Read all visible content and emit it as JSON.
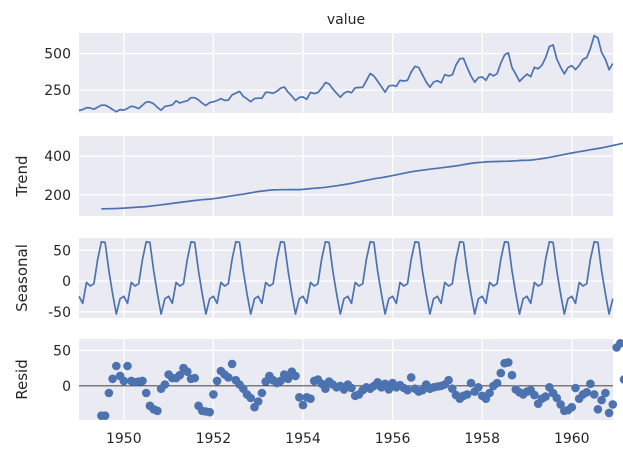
{
  "figure": {
    "title": "value"
  },
  "chart_data": [
    {
      "type": "line",
      "panel": "observed",
      "title": "value",
      "ylabel": "",
      "x_start": 1949.0,
      "x_step": 0.08333,
      "xlim": [
        1949.0,
        1960.92
      ],
      "ylim": [
        95,
        640
      ],
      "yticks": [
        250,
        500
      ],
      "color": "#4c72b0",
      "values": [
        112,
        118,
        132,
        129,
        121,
        135,
        148,
        148,
        136,
        119,
        104,
        118,
        115,
        126,
        141,
        135,
        125,
        149,
        170,
        170,
        158,
        133,
        114,
        140,
        145,
        150,
        178,
        163,
        172,
        178,
        199,
        199,
        184,
        162,
        146,
        166,
        171,
        180,
        193,
        181,
        183,
        218,
        230,
        242,
        209,
        191,
        172,
        194,
        196,
        196,
        236,
        235,
        229,
        243,
        264,
        272,
        237,
        211,
        180,
        201,
        204,
        188,
        235,
        227,
        234,
        264,
        302,
        293,
        259,
        229,
        203,
        229,
        242,
        233,
        267,
        269,
        270,
        315,
        364,
        347,
        312,
        274,
        237,
        278,
        284,
        277,
        317,
        313,
        318,
        374,
        413,
        405,
        355,
        306,
        271,
        306,
        315,
        301,
        356,
        348,
        355,
        422,
        465,
        467,
        404,
        347,
        305,
        336,
        340,
        318,
        362,
        348,
        363,
        435,
        491,
        505,
        404,
        359,
        310,
        337,
        360,
        342,
        406,
        396,
        420,
        472,
        548,
        559,
        463,
        407,
        362,
        405,
        417,
        391,
        419,
        461,
        472,
        535,
        622,
        606,
        508,
        461,
        390,
        432
      ]
    },
    {
      "type": "line",
      "panel": "trend",
      "ylabel": "Trend",
      "x_start": 1949.5,
      "x_step": 0.08333,
      "xlim": [
        1949.0,
        1960.92
      ],
      "ylim": [
        90,
        505
      ],
      "yticks": [
        200,
        400
      ],
      "color": "#4c72b0",
      "values": [
        126.8,
        127.3,
        127.9,
        128.6,
        129.0,
        129.8,
        131.0,
        132.2,
        133.7,
        134.9,
        136.4,
        137.4,
        138.8,
        140.9,
        143.2,
        145.7,
        148.0,
        150.3,
        152.6,
        155.2,
        158.0,
        160.7,
        163.0,
        165.3,
        167.8,
        170.2,
        172.6,
        174.5,
        176.1,
        177.8,
        180.0,
        182.4,
        185.4,
        188.7,
        192.0,
        194.9,
        197.9,
        200.7,
        203.3,
        206.5,
        210.1,
        213.7,
        216.9,
        219.4,
        221.9,
        224.0,
        225.4,
        226.1,
        226.4,
        226.5,
        226.7,
        226.8,
        226.8,
        227.0,
        228.2,
        230.0,
        232.3,
        233.9,
        235.2,
        236.6,
        238.7,
        241.3,
        244.0,
        246.8,
        249.7,
        252.7,
        255.9,
        259.5,
        263.5,
        267.7,
        271.4,
        275.3,
        279.0,
        282.8,
        286.0,
        288.8,
        292.3,
        296.1,
        299.8,
        303.6,
        307.5,
        311.5,
        315.5,
        319.1,
        322.3,
        325.0,
        327.6,
        330.3,
        332.8,
        335.2,
        337.6,
        340.2,
        342.6,
        344.8,
        347.2,
        349.8,
        352.9,
        356.6,
        360.0,
        362.8,
        365.3,
        367.3,
        368.8,
        370.5,
        371.9,
        372.4,
        372.9,
        373.4,
        373.8,
        374.4,
        375.3,
        376.6,
        377.8,
        378.4,
        379.1,
        380.2,
        382.0,
        384.8,
        387.7,
        390.6,
        394.0,
        397.8,
        401.6,
        405.4,
        409.3,
        413.2,
        417.0,
        420.3,
        423.4,
        426.8,
        430.4,
        433.8,
        437.2,
        440.3,
        443.5,
        447.5,
        451.6,
        455.8,
        460.1,
        464.6,
        468.8,
        472.6,
        475.9
      ]
    },
    {
      "type": "line",
      "panel": "seasonal",
      "ylabel": "Seasonal",
      "x_start": 1949.0,
      "x_step": 0.08333,
      "xlim": [
        1949.0,
        1960.92
      ],
      "ylim": [
        -60,
        70
      ],
      "yticks": [
        -50,
        0,
        50
      ],
      "color": "#4c72b0",
      "values": [
        -24.7,
        -36.2,
        -2.2,
        -8.0,
        -4.5,
        35.4,
        63.8,
        62.8,
        16.5,
        -20.6,
        -53.6,
        -28.6,
        -24.7,
        -36.2,
        -2.2,
        -8.0,
        -4.5,
        35.4,
        63.8,
        62.8,
        16.5,
        -20.6,
        -53.6,
        -28.6,
        -24.7,
        -36.2,
        -2.2,
        -8.0,
        -4.5,
        35.4,
        63.8,
        62.8,
        16.5,
        -20.6,
        -53.6,
        -28.6,
        -24.7,
        -36.2,
        -2.2,
        -8.0,
        -4.5,
        35.4,
        63.8,
        62.8,
        16.5,
        -20.6,
        -53.6,
        -28.6,
        -24.7,
        -36.2,
        -2.2,
        -8.0,
        -4.5,
        35.4,
        63.8,
        62.8,
        16.5,
        -20.6,
        -53.6,
        -28.6,
        -24.7,
        -36.2,
        -2.2,
        -8.0,
        -4.5,
        35.4,
        63.8,
        62.8,
        16.5,
        -20.6,
        -53.6,
        -28.6,
        -24.7,
        -36.2,
        -2.2,
        -8.0,
        -4.5,
        35.4,
        63.8,
        62.8,
        16.5,
        -20.6,
        -53.6,
        -28.6,
        -24.7,
        -36.2,
        -2.2,
        -8.0,
        -4.5,
        35.4,
        63.8,
        62.8,
        16.5,
        -20.6,
        -53.6,
        -28.6,
        -24.7,
        -36.2,
        -2.2,
        -8.0,
        -4.5,
        35.4,
        63.8,
        62.8,
        16.5,
        -20.6,
        -53.6,
        -28.6,
        -24.7,
        -36.2,
        -2.2,
        -8.0,
        -4.5,
        35.4,
        63.8,
        62.8,
        16.5,
        -20.6,
        -53.6,
        -28.6,
        -24.7,
        -36.2,
        -2.2,
        -8.0,
        -4.5,
        35.4,
        63.8,
        62.8,
        16.5,
        -20.6,
        -53.6,
        -28.6,
        -24.7,
        -36.2,
        -2.2,
        -8.0,
        -4.5,
        35.4,
        63.8,
        62.8,
        16.5,
        -20.6,
        -53.6,
        -28.6
      ]
    },
    {
      "type": "scatter",
      "panel": "resid",
      "ylabel": "Resid",
      "x_start": 1949.5,
      "x_step": 0.08333,
      "xlim": [
        1949.0,
        1960.92
      ],
      "ylim": [
        -48,
        66
      ],
      "yticks": [
        0,
        50
      ],
      "zero_line": true,
      "color": "#4c72b0",
      "xticks": [
        1950,
        1952,
        1954,
        1956,
        1958,
        1960
      ],
      "values": [
        -42.0,
        -42.0,
        -10.0,
        10.0,
        28.0,
        14.0,
        7.0,
        28.0,
        7.0,
        5.0,
        6.0,
        7.0,
        -10.0,
        -28.0,
        -33.0,
        -35.0,
        -4.0,
        2.0,
        16.0,
        11.0,
        11.0,
        15.0,
        25.0,
        20.0,
        10.0,
        11.0,
        -28.0,
        -35.0,
        -36.0,
        -37.0,
        -12.0,
        7.0,
        21.0,
        16.0,
        12.0,
        31.0,
        8.0,
        2.0,
        -4.0,
        -12.0,
        -17.0,
        -30.0,
        -22.0,
        -10.0,
        6.0,
        14.0,
        8.0,
        4.0,
        7.0,
        16.0,
        10.0,
        20.0,
        14.0,
        -16.0,
        -27.0,
        -16.0,
        -18.0,
        7.0,
        9.0,
        3.0,
        -4.0,
        6.0,
        2.0,
        -2.0,
        0.0,
        -5.0,
        2.0,
        -3.0,
        -14.0,
        -12.0,
        -6.0,
        -2.0,
        -4.0,
        0.0,
        5.0,
        -2.0,
        3.0,
        -5.0,
        4.0,
        -2.0,
        1.0,
        -3.0,
        -6.0,
        12.0,
        -4.0,
        -8.0,
        -6.0,
        2.0,
        -4.0,
        -2.0,
        -1.0,
        0.0,
        2.0,
        8.0,
        -4.0,
        -13.0,
        -18.0,
        -14.0,
        -12.0,
        4.0,
        -8.0,
        -2.0,
        -14.0,
        -18.0,
        -10.0,
        0.0,
        4.0,
        18.0,
        32.0,
        33.0,
        15.0,
        -5.0,
        -9.0,
        -12.0,
        -8.0,
        -6.0,
        -13.0,
        -25.0,
        -18.0,
        -15.0,
        -2.0,
        -10.0,
        -17.0,
        -26.0,
        -35.0,
        -34.0,
        -30.0,
        -3.0,
        -18.0,
        -12.0,
        -9.0,
        3.0,
        -12.0,
        -33.0,
        -20.0,
        -10.0,
        -38.0,
        -26.0,
        54.0,
        60.0,
        9.0,
        -2.0,
        3.0,
        8.0,
        -2.0,
        -30.0,
        -41.0,
        -34.0,
        25.0
      ]
    }
  ]
}
